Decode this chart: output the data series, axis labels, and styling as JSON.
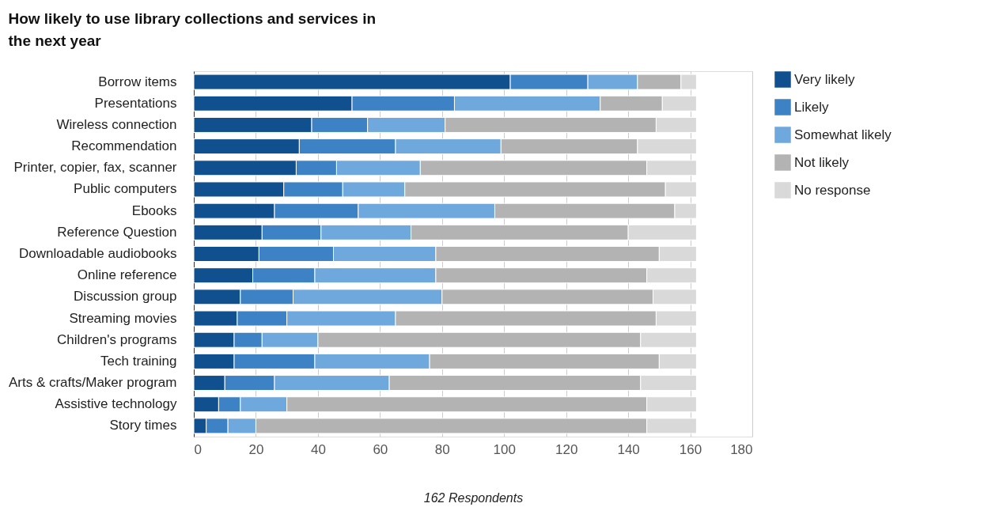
{
  "chart_data": {
    "type": "bar",
    "orientation": "horizontal",
    "stacked": true,
    "title": "How likely to use library collections and services in the next year",
    "xlabel": "162 Respondents",
    "categories": [
      "Borrow items",
      "Presentations",
      "Wireless connection",
      "Recommendation",
      "Printer, copier, fax, scanner",
      "Public computers",
      "Ebooks",
      "Reference Question",
      "Downloadable audiobooks",
      "Online reference",
      "Discussion group",
      "Streaming movies",
      "Children's programs",
      "Tech training",
      "Arts & crafts/Maker program",
      "Assistive technology",
      "Story times"
    ],
    "series": [
      {
        "name": "Very likely",
        "color": "#11508e",
        "values": [
          102,
          51,
          38,
          34,
          33,
          29,
          26,
          22,
          21,
          19,
          15,
          14,
          13,
          13,
          10,
          8,
          4
        ]
      },
      {
        "name": "Likely",
        "color": "#3d82c4",
        "values": [
          25,
          33,
          18,
          31,
          13,
          19,
          27,
          19,
          24,
          20,
          17,
          16,
          9,
          26,
          16,
          7,
          7
        ]
      },
      {
        "name": "Somewhat likely",
        "color": "#6fa8dc",
        "values": [
          16,
          47,
          25,
          34,
          27,
          20,
          44,
          29,
          33,
          39,
          48,
          35,
          18,
          37,
          37,
          15,
          9
        ]
      },
      {
        "name": "Not likely",
        "color": "#b3b3b3",
        "values": [
          14,
          20,
          68,
          44,
          73,
          84,
          58,
          70,
          72,
          68,
          68,
          84,
          104,
          74,
          81,
          116,
          126
        ]
      },
      {
        "name": "No response",
        "color": "#d9d9d9",
        "values": [
          5,
          11,
          13,
          19,
          16,
          10,
          7,
          22,
          12,
          16,
          14,
          13,
          18,
          12,
          18,
          16,
          16
        ]
      }
    ],
    "xlim": [
      0,
      180
    ],
    "xticks": [
      0,
      20,
      40,
      60,
      80,
      100,
      120,
      140,
      160,
      180
    ],
    "grid": "x",
    "legend": "top right"
  }
}
